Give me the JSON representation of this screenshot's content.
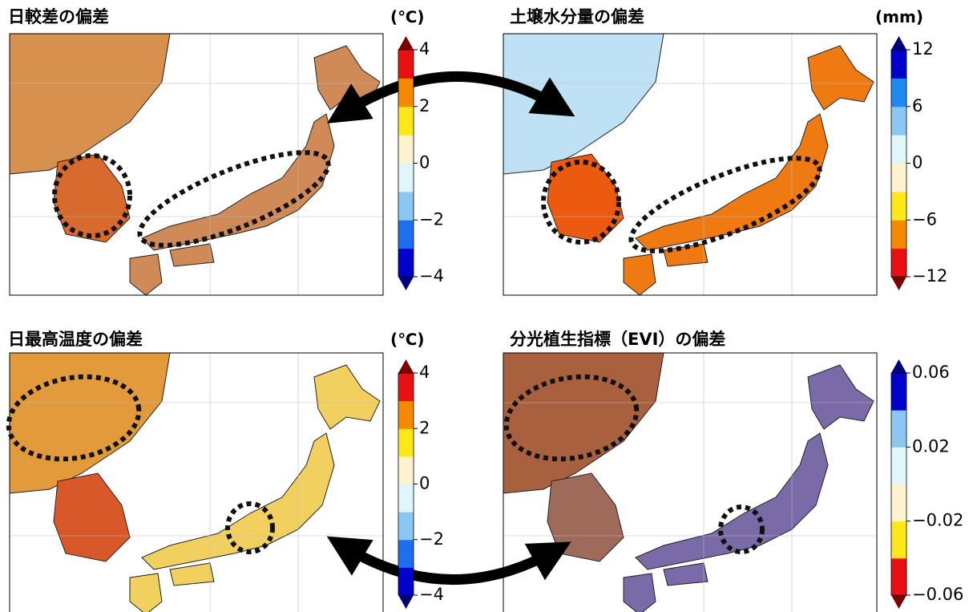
{
  "panels": [
    {
      "title": "日較差の偏差",
      "unit": "(℃)",
      "colorbar": {
        "clim": [
          -4,
          4
        ],
        "colors": [
          "#0000cc",
          "#1e6ff0",
          "#8cc6f2",
          "#dff7fb",
          "#fdf3cf",
          "#ffe81a",
          "#f58a00",
          "#e81010"
        ],
        "under": "#00007a",
        "over": "#7a0000",
        "ticks": [
          {
            "value": -4,
            "label": "−4"
          },
          {
            "value": -2,
            "label": "−2"
          },
          0,
          2,
          4
        ]
      }
    },
    {
      "title": "土壌水分量の偏差",
      "unit": "(mm)",
      "colorbar": {
        "clim": [
          -12,
          12
        ],
        "colors": [
          "#e81010",
          "#f58a00",
          "#ffe81a",
          "#fdf3cf",
          "#dff7fb",
          "#8cc6f2",
          "#1e8af0",
          "#0000cc"
        ],
        "under": "#7a0000",
        "over": "#00007a",
        "ticks": [
          {
            "value": -12,
            "label": "−12"
          },
          {
            "value": -6,
            "label": "−6"
          },
          0,
          6,
          12
        ]
      }
    },
    {
      "title": "日最高温度の偏差",
      "unit": "(℃)",
      "colorbar": {
        "clim": [
          -4,
          4
        ],
        "colors": [
          "#0000cc",
          "#1e6ff0",
          "#8cc6f2",
          "#dff7fb",
          "#fdf3cf",
          "#ffe81a",
          "#f58a00",
          "#e81010"
        ],
        "under": "#00007a",
        "over": "#7a0000",
        "ticks": [
          {
            "value": -4,
            "label": "−4"
          },
          {
            "value": -2,
            "label": "−2"
          },
          0,
          2,
          4
        ]
      }
    },
    {
      "title": "分光植生指標（EVI）の偏差",
      "unit": "",
      "colorbar": {
        "clim": [
          -0.06,
          0.06
        ],
        "colors": [
          "#e81010",
          "#ffe81a",
          "#fdf3cf",
          "#dff7fb",
          "#8cc6f2",
          "#0000cc"
        ],
        "under": "#7a0000",
        "over": "#00007a",
        "ticks": [
          {
            "value": -0.06,
            "label": "−0.06"
          },
          {
            "value": -0.02,
            "label": "−0.02"
          },
          0.02,
          0.06
        ]
      }
    }
  ]
}
